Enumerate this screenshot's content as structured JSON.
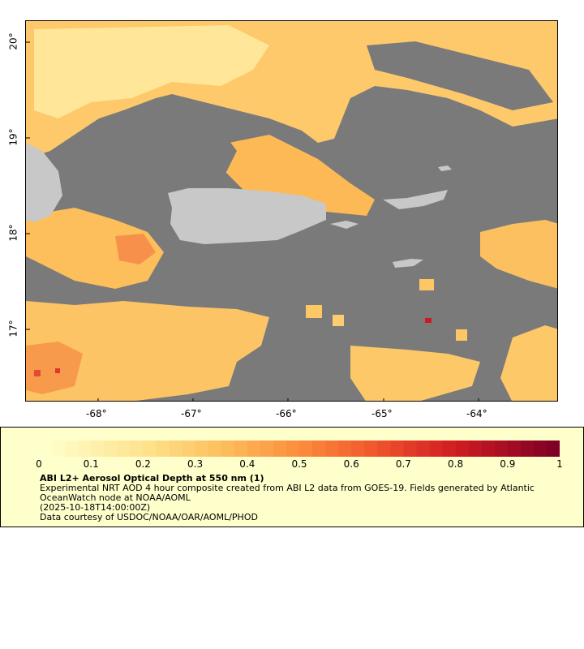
{
  "map": {
    "lat_labels": [
      "20°",
      "19°",
      "18°",
      "17°"
    ],
    "lon_labels": [
      "-68°",
      "-67°",
      "-66°",
      "-65°",
      "-64°"
    ],
    "colors": {
      "water": "#7a7a7a",
      "land": "#c8c8c8",
      "aod_low": "#ffefa8",
      "aod_mid": "#fdba55",
      "aod_high": "#e8563a"
    }
  },
  "legend": {
    "scale_min": 0,
    "scale_max": 1,
    "tick_labels": [
      "0",
      "0.1",
      "0.2",
      "0.3",
      "0.4",
      "0.5",
      "0.6",
      "0.7",
      "0.8",
      "0.9",
      "1"
    ],
    "title": "ABI L2+ Aerosol Optical Depth at 550 nm (1)",
    "line1": "Experimental NRT AOD 4 hour composite created from ABI L2 data from GOES-19. Fields generated by Atlantic OceanWatch node at NOAA/AOML",
    "line2": "(2025-10-18T14:00:00Z)",
    "line3": "Data courtesy of USDOC/NOAA/OAR/AOML/PHOD"
  }
}
